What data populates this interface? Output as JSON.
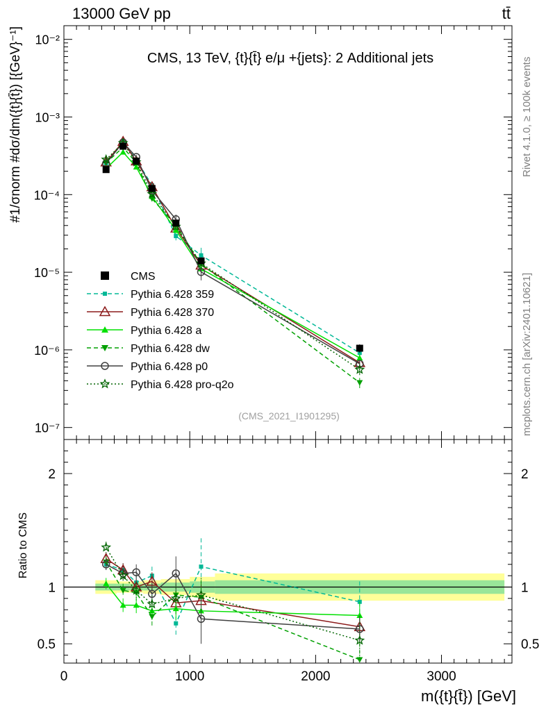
{
  "header": {
    "energy_label": "13000 GeV pp",
    "process_label": "tt̄"
  },
  "side": {
    "rivet": "Rivet 4.1.0, ≥ 100k events",
    "url": "mcplots.cern.ch [arXiv:2401.10621]"
  },
  "chart_data": {
    "type": "line",
    "title": "CMS, 13 TeV, {t}{t̄} e/μ +{jets}: 2 Additional jets",
    "analysis_ref": "(CMS_2021_I1901295)",
    "xlabel": "m({t}{t̄}) [GeV]",
    "ylabel_top": "#1/σnorm #dσ/dm({t}{t̄}) [{GeV}⁻¹]",
    "ylabel_ratio": "Ratio to CMS",
    "xlim": [
      0,
      3560
    ],
    "ylim_top": [
      7e-08,
      0.015
    ],
    "ylim_ratio": [
      0.33,
      2.3
    ],
    "x_ticks": [
      "0",
      "1000",
      "2000",
      "3000"
    ],
    "y_ticks_top": [
      "10⁻⁷",
      "10⁻⁶",
      "10⁻⁵",
      "10⁻⁴",
      "10⁻³",
      "10⁻²"
    ],
    "y_ticks_ratio": [
      "0.5",
      "1",
      "2"
    ],
    "x": [
      335,
      470,
      575,
      700,
      890,
      1090,
      2350
    ],
    "bins": [
      [
        250,
        420
      ],
      [
        420,
        520
      ],
      [
        520,
        630
      ],
      [
        630,
        770
      ],
      [
        770,
        1000
      ],
      [
        1000,
        1200
      ],
      [
        1200,
        3500
      ]
    ],
    "data": {
      "name": "CMS",
      "values": [
        0.00021,
        0.00042,
        0.00027,
        0.00012,
        4.3e-05,
        1.4e-05,
        1.05e-06
      ],
      "err_stat": [
        0.03,
        0.03,
        0.03,
        0.03,
        0.04,
        0.05,
        0.06
      ],
      "err_total": [
        0.06,
        0.05,
        0.05,
        0.06,
        0.07,
        0.09,
        0.12
      ]
    },
    "series": [
      {
        "name": "Pythia 6.428 359",
        "color": "#00b896",
        "dash": "6,4",
        "marker": "square",
        "ratio": [
          1.2,
          1.15,
          1.04,
          1.1,
          0.68,
          1.18,
          0.87
        ],
        "ratio_err": [
          0.05,
          0.06,
          0.07,
          0.08,
          0.12,
          0.25,
          0.18
        ]
      },
      {
        "name": "Pythia 6.428 370",
        "color": "#8b1a1a",
        "dash": "",
        "marker": "triangle-open",
        "ratio": [
          1.25,
          1.15,
          1.0,
          1.05,
          0.86,
          0.88,
          0.65
        ],
        "ratio_err": [
          0.05,
          0.06,
          0.07,
          0.08,
          0.1,
          0.15,
          0.12
        ]
      },
      {
        "name": "Pythia 6.428 a",
        "color": "#00e000",
        "dash": "",
        "marker": "triangle",
        "ratio": [
          1.03,
          0.84,
          0.84,
          0.79,
          0.81,
          0.79,
          0.75
        ],
        "ratio_err": [
          0.05,
          0.06,
          0.07,
          0.08,
          0.1,
          0.15,
          0.12
        ]
      },
      {
        "name": "Pythia 6.428 dw",
        "color": "#00a000",
        "dash": "6,4",
        "marker": "triangle-down",
        "ratio": [
          1.22,
          0.97,
          0.95,
          0.74,
          0.93,
          0.91,
          0.36
        ],
        "ratio_err": [
          0.05,
          0.06,
          0.07,
          0.08,
          0.1,
          0.15,
          0.15
        ]
      },
      {
        "name": "Pythia 6.428 p0",
        "color": "#404040",
        "dash": "",
        "marker": "circle-open",
        "ratio": [
          1.2,
          1.12,
          1.13,
          0.94,
          1.12,
          0.72,
          0.63
        ],
        "ratio_err": [
          0.05,
          0.06,
          0.07,
          0.1,
          0.15,
          0.22,
          0.12
        ]
      },
      {
        "name": "Pythia 6.428 pro-q2o",
        "color": "#006400",
        "dash": "2,3",
        "marker": "star",
        "ratio": [
          1.35,
          1.1,
          0.97,
          0.85,
          0.9,
          0.93,
          0.53
        ],
        "ratio_err": [
          0.05,
          0.06,
          0.07,
          0.08,
          0.1,
          0.15,
          0.15
        ]
      }
    ]
  }
}
